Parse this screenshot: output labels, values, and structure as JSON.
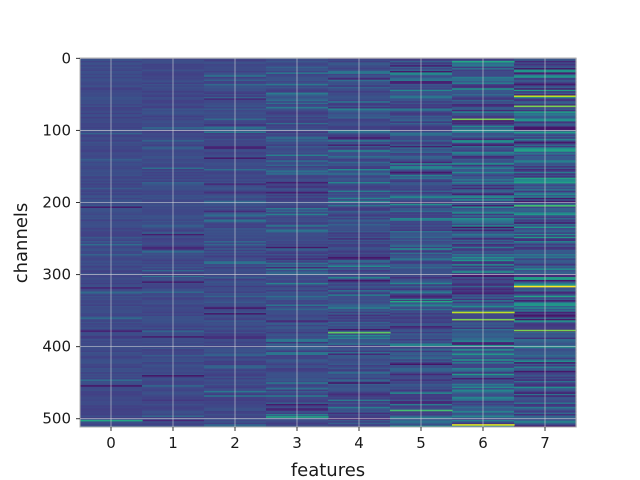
{
  "chart_data": {
    "type": "heatmap",
    "title": "",
    "xlabel": "features",
    "ylabel": "channels",
    "x_categories": [
      "0",
      "1",
      "2",
      "3",
      "4",
      "5",
      "6",
      "7"
    ],
    "y_ticks": [
      "0",
      "100",
      "200",
      "300",
      "400",
      "500"
    ],
    "y_tick_values": [
      0,
      100,
      200,
      300,
      400,
      500
    ],
    "n_channels": 512,
    "ylim": [
      0,
      512
    ],
    "y_inverted": true,
    "grid": true,
    "colormap": "viridis",
    "colors": {
      "low": "#3b528b",
      "high": "#fde725",
      "grid": "#dcdcdc",
      "background": "#ffffff"
    },
    "column_activity": [
      0.05,
      0.07,
      0.13,
      0.2,
      0.28,
      0.34,
      0.44,
      0.52
    ],
    "highlights": [
      {
        "feature": 7,
        "channel": 52,
        "value": 0.9
      },
      {
        "feature": 7,
        "channel": 66,
        "value": 0.8
      },
      {
        "feature": 7,
        "channel": 204,
        "value": 0.7
      },
      {
        "feature": 7,
        "channel": 316,
        "value": 1.0
      },
      {
        "feature": 7,
        "channel": 377,
        "value": 0.8
      },
      {
        "feature": 6,
        "channel": 84,
        "value": 0.8
      },
      {
        "feature": 6,
        "channel": 352,
        "value": 0.9
      },
      {
        "feature": 6,
        "channel": 362,
        "value": 0.8
      },
      {
        "feature": 6,
        "channel": 508,
        "value": 0.95
      },
      {
        "feature": 6,
        "channel": 4,
        "value": 0.6
      },
      {
        "feature": 4,
        "channel": 380,
        "value": 0.75
      },
      {
        "feature": 5,
        "channel": 337,
        "value": 0.6
      },
      {
        "feature": 5,
        "channel": 488,
        "value": 0.7
      },
      {
        "feature": 3,
        "channel": 497,
        "value": 0.6
      },
      {
        "feature": 0,
        "channel": 502,
        "value": 0.6
      }
    ]
  }
}
